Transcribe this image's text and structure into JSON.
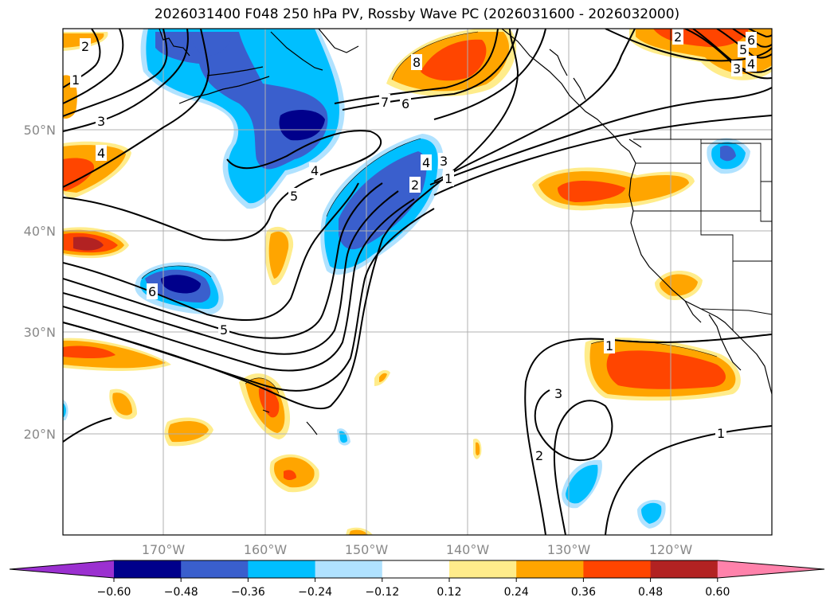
{
  "title": "2026031400 F048 250 hPa PV, Rossby Wave PC (2026031600 - 2026032000)",
  "lat_labels": [
    "50°N",
    "40°N",
    "30°N",
    "20°N"
  ],
  "lon_labels": [
    "170°W",
    "160°W",
    "150°W",
    "140°W",
    "130°W",
    "120°W"
  ],
  "contour_labels": [
    "2",
    "1",
    "3",
    "4",
    "5",
    "6",
    "4",
    "5",
    "2",
    "3",
    "4",
    "1",
    "7",
    "6",
    "8",
    "1",
    "3",
    "2",
    "1",
    "2",
    "3",
    "4",
    "5",
    "6"
  ],
  "colorbar": {
    "ticks": [
      "−0.60",
      "−0.48",
      "−0.36",
      "−0.24",
      "−0.12",
      "0.12",
      "0.24",
      "0.36",
      "0.48",
      "0.60"
    ],
    "colors": [
      "#9b30d0",
      "#00008b",
      "#3a5fcd",
      "#00bfff",
      "#b0e2ff",
      "#ffffff",
      "#ffec8b",
      "#ffa500",
      "#ff4500",
      "#b22222",
      "#ff82ab"
    ]
  }
}
